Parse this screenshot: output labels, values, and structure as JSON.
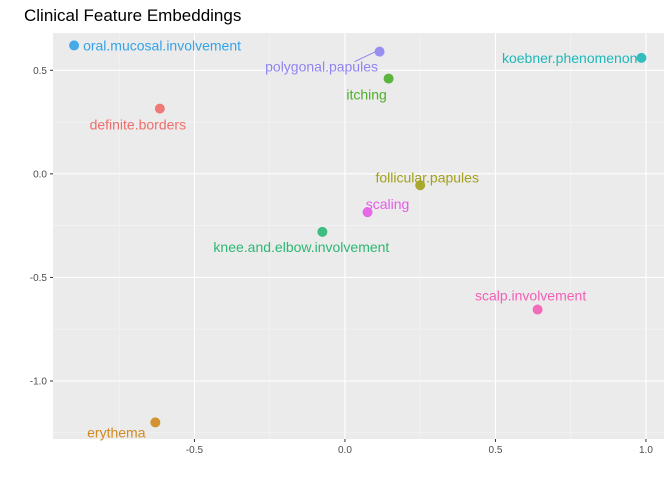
{
  "chart_data": {
    "type": "scatter",
    "title": "Clinical Feature Embeddings",
    "xlabel": "",
    "ylabel": "",
    "xlim": [
      -0.97,
      1.06
    ],
    "ylim": [
      -1.28,
      0.68
    ],
    "x_ticks": [
      -0.5,
      0.0,
      0.5,
      1.0
    ],
    "y_ticks": [
      0.5,
      0.0,
      -0.5,
      -1.0
    ],
    "x_tick_labels": [
      "-0.5",
      "0.0",
      "0.5",
      "1.0"
    ],
    "y_tick_labels": [
      "0.5",
      "0.0",
      "-0.5",
      "-1.0"
    ],
    "grid": true,
    "legend": "none",
    "points": [
      {
        "label": "oral.mucosal.involvement",
        "x": -0.9,
        "y": 0.62,
        "color": "#35A2E8"
      },
      {
        "label": "polygonal.papules",
        "x": 0.115,
        "y": 0.59,
        "color": "#8F84F0"
      },
      {
        "label": "koebner.phenomenon",
        "x": 0.985,
        "y": 0.56,
        "color": "#1FB8BA"
      },
      {
        "label": "itching",
        "x": 0.145,
        "y": 0.46,
        "color": "#4DAD2B"
      },
      {
        "label": "definite.borders",
        "x": -0.615,
        "y": 0.315,
        "color": "#EE6E6B"
      },
      {
        "label": "follicular.papules",
        "x": 0.25,
        "y": -0.055,
        "color": "#A3A11B"
      },
      {
        "label": "scaling",
        "x": 0.075,
        "y": -0.185,
        "color": "#E55CE8"
      },
      {
        "label": "knee.and.elbow.involvement",
        "x": -0.075,
        "y": -0.28,
        "color": "#2CB874"
      },
      {
        "label": "scalp.involvement",
        "x": 0.64,
        "y": -0.655,
        "color": "#F45EB5"
      },
      {
        "label": "erythema",
        "x": -0.63,
        "y": -1.2,
        "color": "#D08A1F"
      }
    ]
  }
}
